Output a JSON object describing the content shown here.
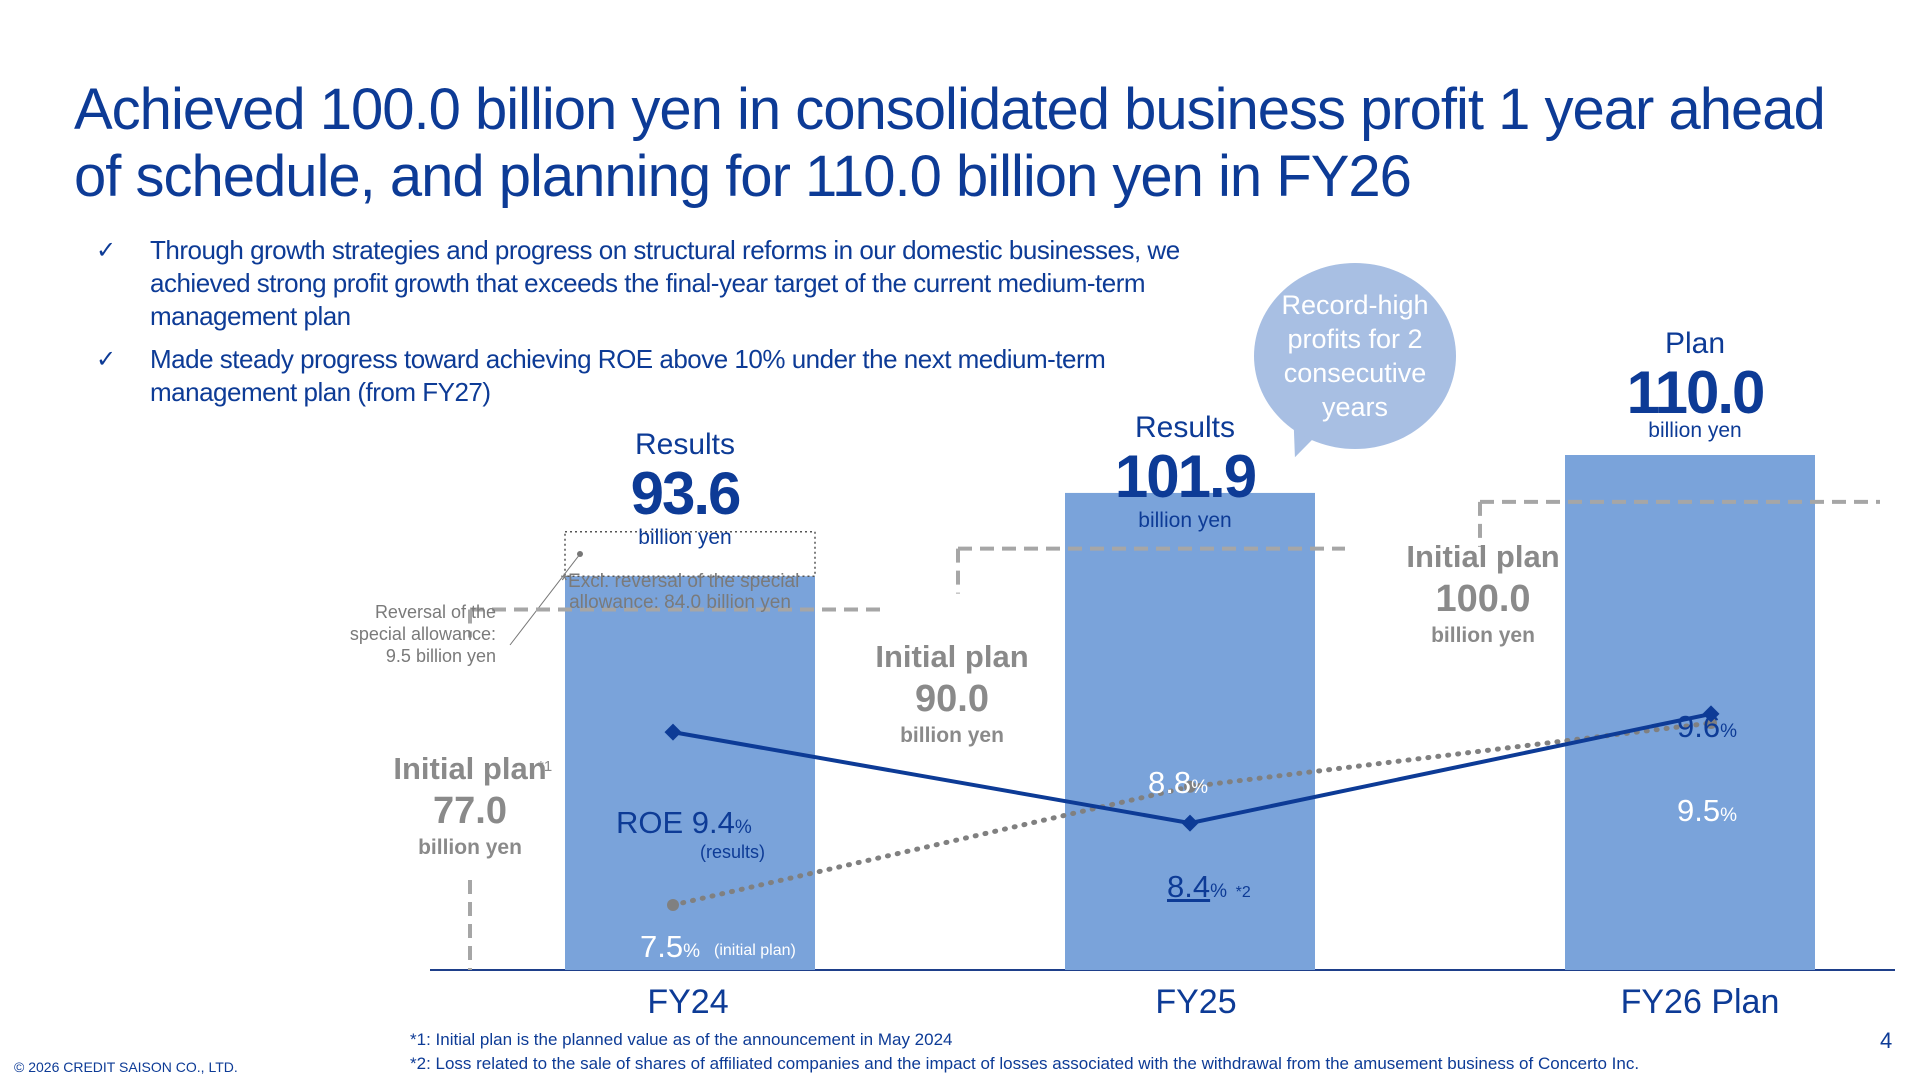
{
  "title": "Achieved 100.0 billion yen in consolidated business profit 1 year ahead of schedule, and planning for 110.0 billion yen in FY26",
  "bullets": [
    "Through growth strategies and progress on structural reforms in our domestic businesses, we achieved strong profit growth that exceeds the final-year target of the current medium-term management plan",
    "Made steady progress toward achieving ROE above 10% under the next medium-term management plan (from FY27)"
  ],
  "check_icon": "✓",
  "bubble": "Record-high profits for 2 consecutive years",
  "chart_data": {
    "type": "bar",
    "categories": [
      "FY24",
      "FY25",
      "FY26 Plan"
    ],
    "bar_values": [
      93.6,
      101.9,
      110.0
    ],
    "bar_color": "#7aa3da",
    "special_allowance_reversal": 9.5,
    "initial_plan_values": [
      77.0,
      90.0,
      100.0
    ],
    "roe_results": [
      9.4,
      8.4,
      9.6
    ],
    "roe_initial_plan": [
      7.5,
      8.8,
      9.5
    ],
    "ylim": [
      0,
      115
    ],
    "line_color": "#0d3b96",
    "dotted_color": "#808080",
    "plan_color": "#a6a6a6",
    "labels": {
      "fy24_head": "Results",
      "fy24_value": "93.6",
      "fy25_head": "Results",
      "fy25_value": "101.9",
      "fy26_head": "Plan",
      "fy26_value": "110.0",
      "unit": "billion yen",
      "initial_plan": "Initial plan",
      "plan77": "77.0",
      "plan90": "90.0",
      "plan100": "100.0",
      "excl_note_1": "*Excl. reversal of the special",
      "excl_note_2": "allowance: 84.0 billion yen",
      "reversal_1": "Reversal of the",
      "reversal_2": "special allowance:",
      "reversal_3": "9.5 billion yen",
      "sup1": "*1",
      "sup2": "*2",
      "roe_label": "ROE 9.4",
      "pct": "%",
      "results_note": "(results)",
      "initial_plan_note": "(initial plan)",
      "roe_fy24_plan": "7.5",
      "roe_fy25_plan": "8.8",
      "roe_fy25_result": "8.4",
      "roe_fy26_result": "9.6",
      "roe_fy26_plan": "9.5"
    }
  },
  "footnotes": [
    "*1: Initial plan is the planned value as of the announcement in May 2024",
    "*2: Loss related to the sale of shares of affiliated companies and the impact of losses associated with the withdrawal from the amusement business of Concerto Inc."
  ],
  "copyright": "© 2026 CREDIT SAISON CO., LTD.",
  "page_number": "4"
}
